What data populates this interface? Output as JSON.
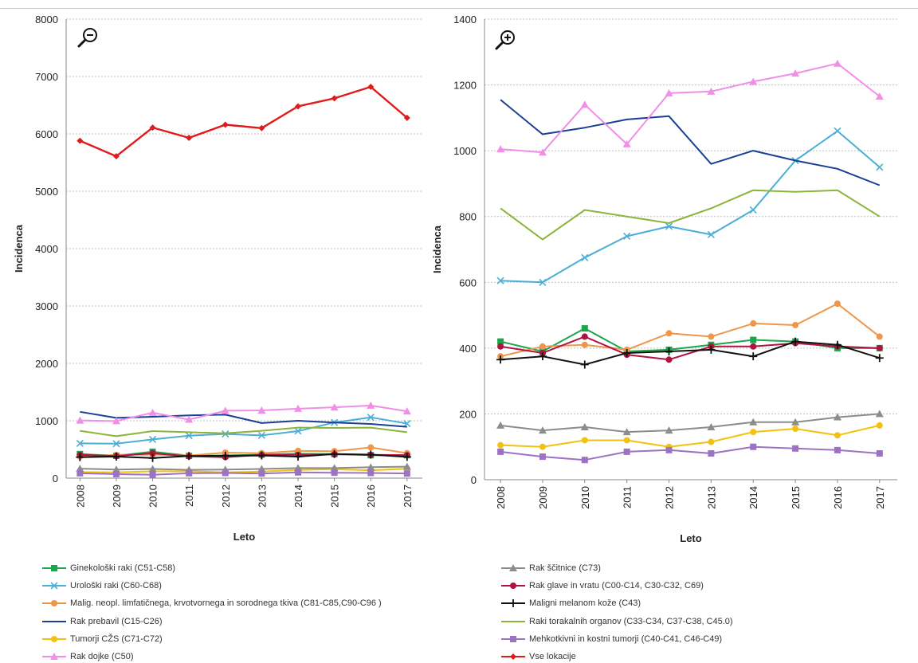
{
  "chart_data": [
    {
      "type": "line",
      "ylabel": "Incidenca",
      "xlabel": "Leto",
      "ylim": [
        0,
        8000
      ],
      "yticks": [
        0,
        1000,
        2000,
        3000,
        4000,
        5000,
        6000,
        7000,
        8000
      ],
      "grid": true,
      "zoom_icon": "zoom-out-icon",
      "x": [
        "2008",
        "2009",
        "2010",
        "2011",
        "2012",
        "2013",
        "2014",
        "2015",
        "2016",
        "2017"
      ],
      "series": [
        {
          "name": "Ginekološki raki (C51-C58)",
          "color": "#1aa64b",
          "marker": "square",
          "values": [
            420,
            390,
            460,
            390,
            395,
            410,
            425,
            420,
            400,
            400
          ]
        },
        {
          "name": "Urološki raki (C60-C68)",
          "color": "#4baed6",
          "marker": "x",
          "values": [
            605,
            600,
            675,
            740,
            770,
            745,
            820,
            970,
            1060,
            950
          ]
        },
        {
          "name": "Malig. neopl. limfatičnega, krvotvornega in sorodnega tkiva (C81-C85,C90-C96 )",
          "color": "#f0964a",
          "marker": "circle",
          "values": [
            375,
            405,
            410,
            395,
            445,
            435,
            475,
            470,
            535,
            435
          ]
        },
        {
          "name": "Rak prebavil (C15-C26)",
          "color": "#1b3f94",
          "marker": "none",
          "values": [
            1155,
            1050,
            1070,
            1095,
            1105,
            960,
            1000,
            970,
            945,
            895
          ]
        },
        {
          "name": "Tumorji CŽS (C71-C72)",
          "color": "#f2c20f",
          "marker": "circle",
          "values": [
            105,
            100,
            120,
            120,
            100,
            115,
            145,
            155,
            135,
            165
          ]
        },
        {
          "name": "Rak dojke (C50)",
          "color": "#f08ee8",
          "marker": "triangle",
          "values": [
            1005,
            995,
            1140,
            1020,
            1175,
            1180,
            1210,
            1235,
            1265,
            1165
          ]
        },
        {
          "name": "Rak ščitnice (C73)",
          "color": "#8c8c8c",
          "marker": "triangle",
          "values": [
            165,
            150,
            160,
            145,
            150,
            160,
            175,
            175,
            190,
            200
          ]
        },
        {
          "name": "Rak glave in vratu (C00-C14, C30-C32, C69)",
          "color": "#b0133f",
          "marker": "circle",
          "values": [
            405,
            385,
            435,
            380,
            365,
            405,
            405,
            415,
            405,
            400
          ]
        },
        {
          "name": "Maligni melanom kože (C43)",
          "color": "#111111",
          "marker": "plus",
          "values": [
            365,
            375,
            350,
            385,
            390,
            395,
            375,
            420,
            410,
            370
          ]
        },
        {
          "name": "Raki torakalnih organov (C33-C34, C37-C38, C45.0)",
          "color": "#8db43a",
          "marker": "none",
          "values": [
            825,
            730,
            820,
            800,
            780,
            825,
            880,
            875,
            880,
            800
          ]
        },
        {
          "name": "Mehkotkivni in kostni tumorji (C40-C41, C46-C49)",
          "color": "#9b72c4",
          "marker": "square",
          "values": [
            85,
            70,
            60,
            85,
            90,
            80,
            100,
            95,
            90,
            80
          ]
        },
        {
          "name": "Vse lokacije",
          "color": "#e01b1b",
          "marker": "diamond",
          "values": [
            5880,
            5610,
            6110,
            5930,
            6160,
            6100,
            6480,
            6620,
            6820,
            6280
          ]
        }
      ]
    },
    {
      "type": "line",
      "ylabel": "Incidenca",
      "xlabel": "Leto",
      "ylim": [
        0,
        1400
      ],
      "yticks": [
        0,
        200,
        400,
        600,
        800,
        1000,
        1200,
        1400
      ],
      "grid": true,
      "zoom_icon": "zoom-in-icon",
      "x": [
        "2008",
        "2009",
        "2010",
        "2011",
        "2012",
        "2013",
        "2014",
        "2015",
        "2016",
        "2017"
      ],
      "series": [
        {
          "name": "Ginekološki raki (C51-C58)",
          "color": "#1aa64b",
          "marker": "square",
          "values": [
            420,
            390,
            460,
            390,
            395,
            410,
            425,
            420,
            400,
            400
          ]
        },
        {
          "name": "Urološki raki (C60-C68)",
          "color": "#4baed6",
          "marker": "x",
          "values": [
            605,
            600,
            675,
            740,
            770,
            745,
            820,
            970,
            1060,
            950
          ]
        },
        {
          "name": "Malig. neopl. limfatičnega, krvotvornega in sorodnega tkiva (C81-C85,C90-C96 )",
          "color": "#f0964a",
          "marker": "circle",
          "values": [
            375,
            405,
            410,
            395,
            445,
            435,
            475,
            470,
            535,
            435
          ]
        },
        {
          "name": "Rak prebavil (C15-C26)",
          "color": "#1b3f94",
          "marker": "none",
          "values": [
            1155,
            1050,
            1070,
            1095,
            1105,
            960,
            1000,
            970,
            945,
            895
          ]
        },
        {
          "name": "Tumorji CŽS (C71-C72)",
          "color": "#f2c20f",
          "marker": "circle",
          "values": [
            105,
            100,
            120,
            120,
            100,
            115,
            145,
            155,
            135,
            165
          ]
        },
        {
          "name": "Rak dojke (C50)",
          "color": "#f08ee8",
          "marker": "triangle",
          "values": [
            1005,
            995,
            1140,
            1020,
            1175,
            1180,
            1210,
            1235,
            1265,
            1165
          ]
        },
        {
          "name": "Rak ščitnice (C73)",
          "color": "#8c8c8c",
          "marker": "triangle",
          "values": [
            165,
            150,
            160,
            145,
            150,
            160,
            175,
            175,
            190,
            200
          ]
        },
        {
          "name": "Rak glave in vratu (C00-C14, C30-C32, C69)",
          "color": "#b0133f",
          "marker": "circle",
          "values": [
            405,
            385,
            435,
            380,
            365,
            405,
            405,
            415,
            405,
            400
          ]
        },
        {
          "name": "Maligni melanom kože (C43)",
          "color": "#111111",
          "marker": "plus",
          "values": [
            365,
            375,
            350,
            385,
            390,
            395,
            375,
            420,
            410,
            370
          ]
        },
        {
          "name": "Raki torakalnih organov (C33-C34, C37-C38, C45.0)",
          "color": "#8db43a",
          "marker": "none",
          "values": [
            825,
            730,
            820,
            800,
            780,
            825,
            880,
            875,
            880,
            800
          ]
        },
        {
          "name": "Mehkotkivni in kostni tumorji (C40-C41, C46-C49)",
          "color": "#9b72c4",
          "marker": "square",
          "values": [
            85,
            70,
            60,
            85,
            90,
            80,
            100,
            95,
            90,
            80
          ]
        }
      ]
    }
  ],
  "legend": {
    "columns": 2,
    "items": [
      {
        "label": "Ginekološki raki (C51-C58)",
        "color": "#1aa64b",
        "marker": "square"
      },
      {
        "label": "Rak ščitnice (C73)",
        "color": "#8c8c8c",
        "marker": "triangle"
      },
      {
        "label": "Urološki raki (C60-C68)",
        "color": "#4baed6",
        "marker": "x"
      },
      {
        "label": "Rak glave in vratu (C00-C14, C30-C32, C69)",
        "color": "#b0133f",
        "marker": "circle"
      },
      {
        "label": "Malig. neopl. limfatičnega, krvotvornega in sorodnega tkiva (C81-C85,C90-C96 )",
        "color": "#f0964a",
        "marker": "circle"
      },
      {
        "label": "Maligni melanom kože (C43)",
        "color": "#111111",
        "marker": "plus"
      },
      {
        "label": "Rak prebavil (C15-C26)",
        "color": "#1b3f94",
        "marker": "none"
      },
      {
        "label": "Raki torakalnih organov (C33-C34, C37-C38, C45.0)",
        "color": "#8db43a",
        "marker": "none"
      },
      {
        "label": "Tumorji CŽS (C71-C72)",
        "color": "#f2c20f",
        "marker": "circle"
      },
      {
        "label": "Mehkotkivni in kostni tumorji (C40-C41, C46-C49)",
        "color": "#9b72c4",
        "marker": "square"
      },
      {
        "label": "Rak dojke (C50)",
        "color": "#f08ee8",
        "marker": "triangle"
      },
      {
        "label": "Vse lokacije",
        "color": "#e01b1b",
        "marker": "diamond"
      }
    ]
  }
}
